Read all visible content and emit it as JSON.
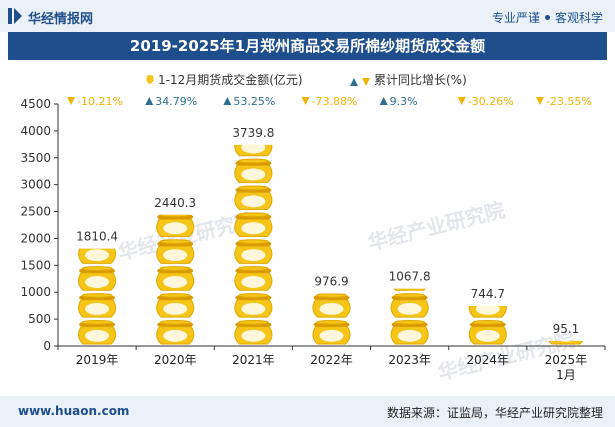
{
  "header": {
    "logo_text": "华经情报网",
    "slogan_left": "专业严谨",
    "slogan_right": "客观科学"
  },
  "title": "2019-2025年1月郑州商品交易所棉纱期货成交金额",
  "footer": {
    "url": "www.huaon.com",
    "source": "数据来源：证监局，华经产业研究院整理"
  },
  "watermark": "华经产业研究院",
  "colors": {
    "pot": "#f5c518",
    "pot_rim": "#e0a800",
    "pot_shade": "#d99a00",
    "up": "#2e6f8e",
    "down": "#f0b400",
    "header_blue": "#1f4e8c"
  },
  "chart_data": {
    "type": "bar",
    "title": "2019-2025年1月郑州商品交易所棉纱期货成交金额",
    "categories": [
      "2019年",
      "2020年",
      "2021年",
      "2022年",
      "2023年",
      "2024年",
      "2025年\n1月"
    ],
    "category_lines": [
      [
        "2019年"
      ],
      [
        "2020年"
      ],
      [
        "2021年"
      ],
      [
        "2022年"
      ],
      [
        "2023年"
      ],
      [
        "2024年"
      ],
      [
        "2025年",
        "1月"
      ]
    ],
    "series": [
      {
        "name": "1-12月期货成交金额(亿元)",
        "values": [
          1810.4,
          2440.3,
          3739.8,
          976.9,
          1067.8,
          744.7,
          95.1
        ],
        "labels": [
          "1810.4",
          "2440.3",
          "3739.8",
          "976.9",
          "1067.8",
          "744.7",
          "95.1"
        ]
      },
      {
        "name": "累计同比增长(%)",
        "values": [
          -10.21,
          34.79,
          53.25,
          -73.88,
          9.3,
          -30.26,
          -23.55
        ],
        "labels": [
          "-10.21%",
          "34.79%",
          "53.25%",
          "-73.88%",
          "9.3%",
          "-30.26%",
          "-23.55%"
        ]
      }
    ],
    "ylim": [
      0,
      4500
    ],
    "yticks": [
      0,
      500,
      1000,
      1500,
      2000,
      2500,
      3000,
      3500,
      4000,
      4500
    ],
    "ytick_labels": [
      "0",
      "500",
      "1000",
      "1500",
      "2000",
      "2500",
      "3000",
      "3500",
      "4000",
      "4500"
    ],
    "xlabel": "",
    "ylabel": "",
    "legend_position": "top-center",
    "grid": false
  }
}
